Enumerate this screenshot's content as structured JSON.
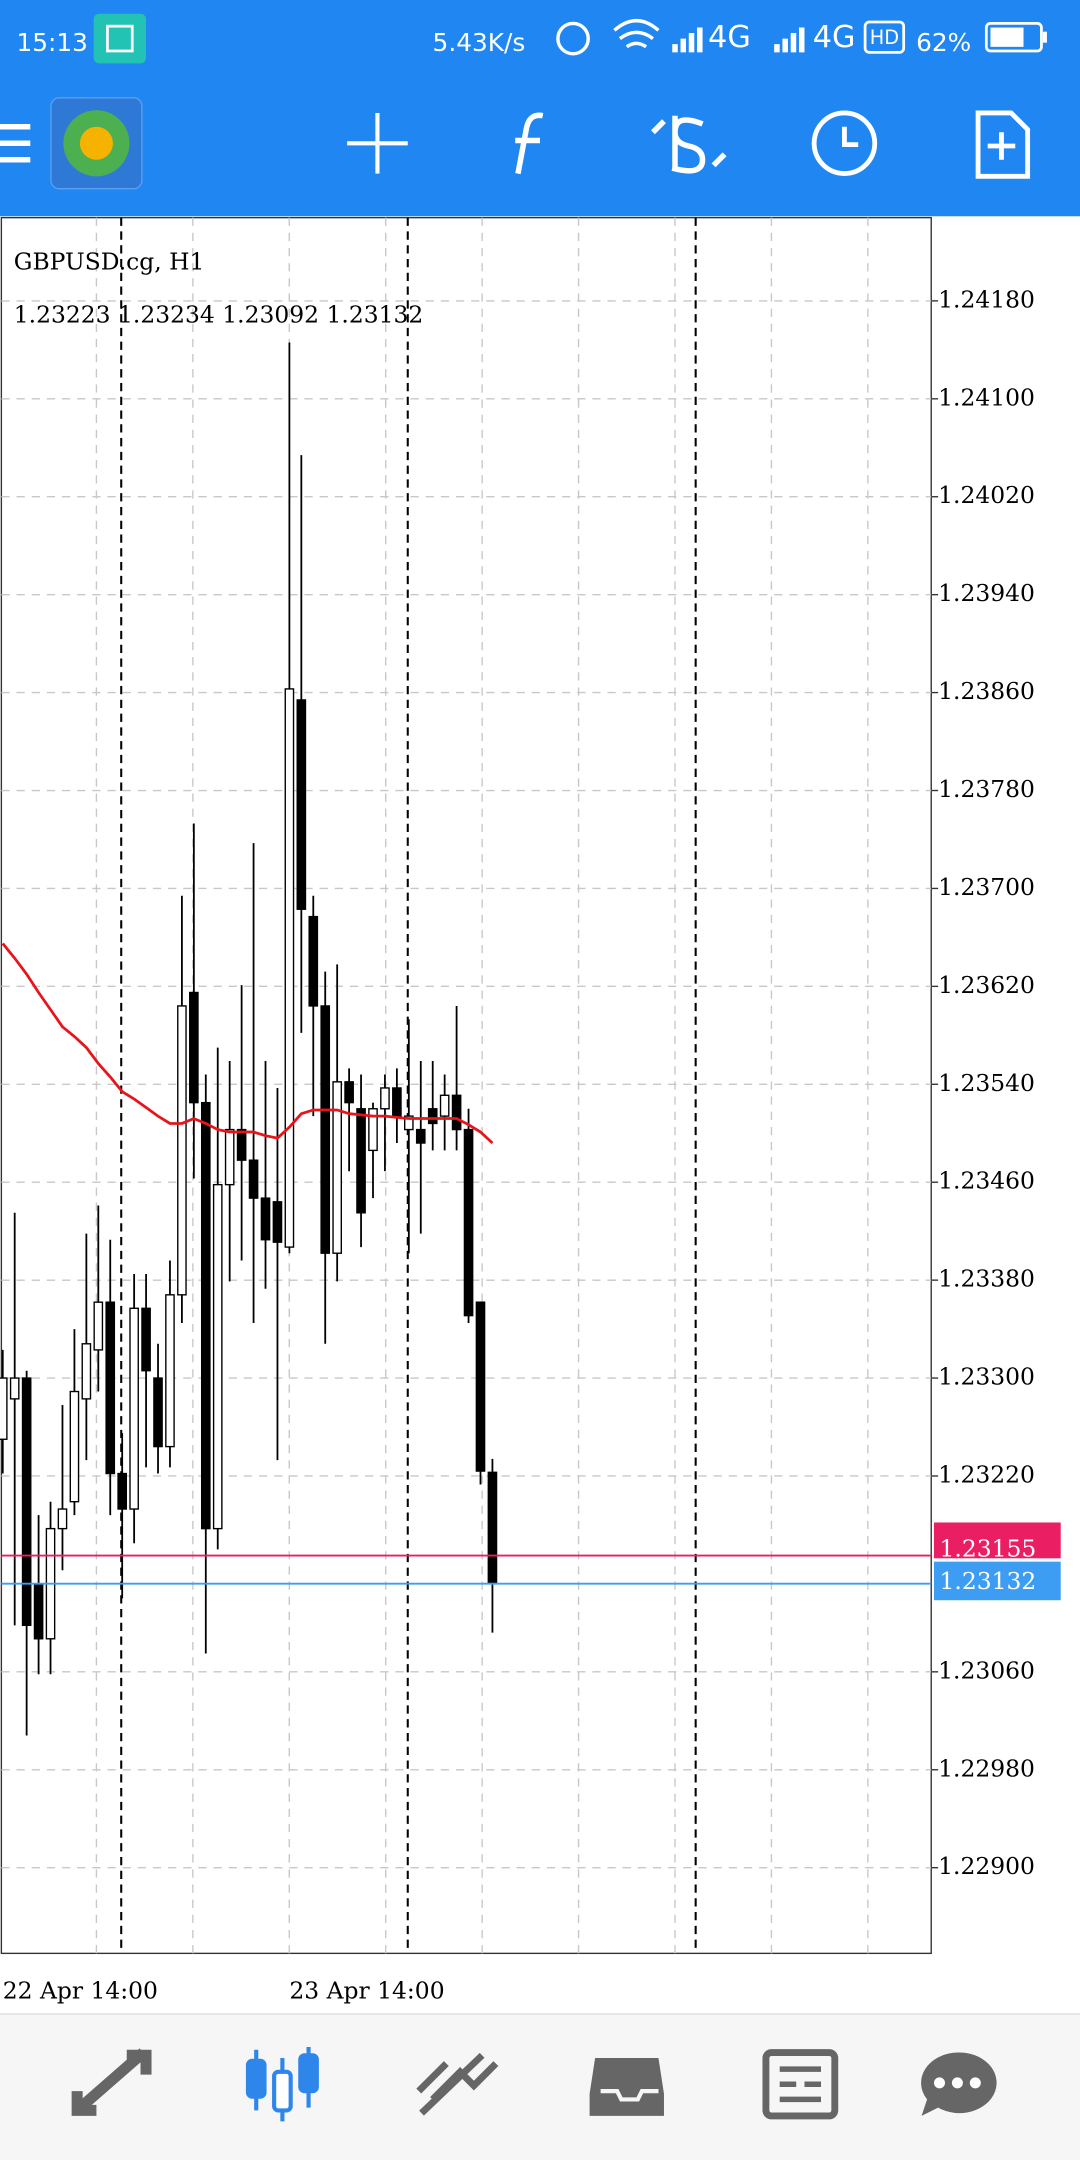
{
  "status_bar": {
    "time": "15:13",
    "speed": "5.43K/s",
    "network1": "4G",
    "network2": "4G",
    "hd": "HD",
    "battery": "62%"
  },
  "chart_data": {
    "type": "candlestick",
    "symbol_label": "GBPUSD.cg, H1",
    "categories": [
      "22 Apr 14:00",
      null,
      null,
      null,
      null,
      null,
      null,
      null,
      null,
      null,
      null,
      null,
      null,
      null,
      null,
      null,
      null,
      null,
      null,
      null,
      null,
      null,
      null,
      null,
      "23 Apr 14:00",
      null,
      null,
      null,
      null,
      null,
      null,
      null,
      null,
      null,
      null,
      null,
      null,
      null,
      null,
      null,
      null,
      null
    ],
    "open": [
      1.2325,
      1.23283,
      1.233,
      1.23132,
      1.23087,
      1.23177,
      1.23199,
      1.23283,
      1.23323,
      1.23362,
      1.23222,
      1.23193,
      1.23357,
      1.233,
      1.23244,
      1.23368,
      1.23615,
      1.23525,
      1.23177,
      1.23458,
      1.23503,
      1.23478,
      1.23447,
      1.23444,
      1.23407,
      1.23854,
      1.23677,
      1.23604,
      1.23402,
      1.23542,
      1.2352,
      1.23486,
      1.2352,
      1.23537,
      1.23503,
      1.23503,
      1.2352,
      1.23514,
      1.23531,
      1.23503,
      1.23362,
      1.23223
    ],
    "high": [
      1.23323,
      1.23435,
      1.23306,
      1.23188,
      1.23199,
      1.23278,
      1.2334,
      1.23418,
      1.23441,
      1.23413,
      1.23255,
      1.23385,
      1.23385,
      1.23328,
      1.23396,
      1.23694,
      1.23753,
      1.23548,
      1.2357,
      1.23559,
      1.23621,
      1.23737,
      1.23559,
      1.23537,
      1.24146,
      1.24054,
      1.23694,
      1.23632,
      1.23638,
      1.23553,
      1.23548,
      1.23525,
      1.23548,
      1.23553,
      1.23593,
      1.23559,
      1.23559,
      1.23548,
      1.23604,
      1.2352,
      1.23362,
      1.23234
    ],
    "low": [
      1.23222,
      1.23098,
      1.23008,
      1.23058,
      1.23058,
      1.23143,
      1.23188,
      1.23233,
      1.23289,
      1.23188,
      1.2312,
      1.23165,
      1.23227,
      1.23222,
      1.23227,
      1.23345,
      1.23463,
      1.23075,
      1.2316,
      1.23379,
      1.23396,
      1.23345,
      1.23373,
      1.23233,
      1.23402,
      1.23582,
      1.23514,
      1.23328,
      1.23379,
      1.23469,
      1.23407,
      1.23447,
      1.23469,
      1.23492,
      1.23402,
      1.23418,
      1.23486,
      1.23486,
      1.23486,
      1.23345,
      1.23213,
      1.23092
    ],
    "close": [
      1.233,
      1.233,
      1.23098,
      1.23087,
      1.23177,
      1.23193,
      1.23289,
      1.23328,
      1.23362,
      1.23222,
      1.23193,
      1.23357,
      1.23306,
      1.23244,
      1.23368,
      1.23604,
      1.23525,
      1.23177,
      1.23458,
      1.23503,
      1.23478,
      1.23447,
      1.23413,
      1.23411,
      1.23863,
      1.23683,
      1.23604,
      1.23402,
      1.23542,
      1.23525,
      1.23435,
      1.2352,
      1.23537,
      1.23514,
      1.23514,
      1.23492,
      1.23508,
      1.23531,
      1.23503,
      1.23351,
      1.23224,
      1.23132
    ],
    "ma": {
      "color": "#e8141b",
      "values": [
        1.23655,
        1.23643,
        1.2363,
        1.23615,
        1.23601,
        1.23587,
        1.23579,
        1.2357,
        1.23557,
        1.23546,
        1.23534,
        1.23528,
        1.23521,
        1.23514,
        1.23508,
        1.23508,
        1.23512,
        1.23508,
        1.23503,
        1.23501,
        1.23501,
        1.23501,
        1.23498,
        1.23496,
        1.23505,
        1.23516,
        1.23519,
        1.23519,
        1.23519,
        1.23516,
        1.23515,
        1.23514,
        1.23514,
        1.23513,
        1.23512,
        1.23512,
        1.23512,
        1.23512,
        1.23512,
        1.23507,
        1.23501,
        1.23492
      ]
    },
    "up_color": "#ffffff",
    "down_color": "#000000",
    "ylim": [
      1.2283,
      1.24248
    ],
    "yticks": [
      {
        "value": 1.2418,
        "label": "1.24180"
      },
      {
        "value": 1.241,
        "label": "1.24100"
      },
      {
        "value": 1.2402,
        "label": "1.24020"
      },
      {
        "value": 1.2394,
        "label": "1.23940"
      },
      {
        "value": 1.2386,
        "label": "1.23860"
      },
      {
        "value": 1.2378,
        "label": "1.23780"
      },
      {
        "value": 1.237,
        "label": "1.23700"
      },
      {
        "value": 1.2362,
        "label": "1.23620"
      },
      {
        "value": 1.2354,
        "label": "1.23540"
      },
      {
        "value": 1.2346,
        "label": "1.23460"
      },
      {
        "value": 1.2338,
        "label": "1.23380"
      },
      {
        "value": 1.233,
        "label": "1.23300"
      },
      {
        "value": 1.2322,
        "label": "1.23220"
      },
      {
        "value": 1.2306,
        "label": "1.23060"
      },
      {
        "value": 1.2298,
        "label": "1.22980"
      },
      {
        "value": 1.229,
        "label": "1.22900"
      }
    ],
    "grid": true,
    "ask": {
      "value": 1.23155,
      "color": "#e91e63"
    },
    "bid": {
      "value": 1.23132,
      "color": "#3d9df2"
    }
  }
}
